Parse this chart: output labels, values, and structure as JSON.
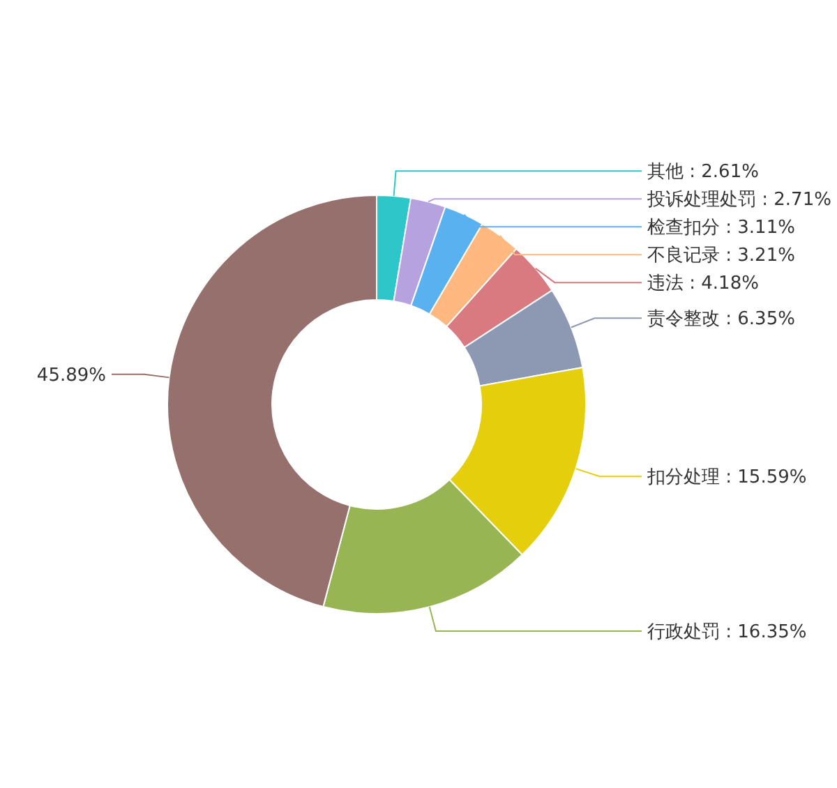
{
  "chart_data": {
    "type": "donut",
    "categories": [
      "其他",
      "投诉处理处罚",
      "检查扣分",
      "不良记录",
      "违法",
      "责令整改",
      "扣分处理",
      "行政处罚",
      null
    ],
    "values": [
      2.61,
      2.71,
      3.11,
      3.21,
      4.18,
      6.35,
      15.59,
      16.35,
      45.89
    ],
    "colors": [
      "#2ec7c9",
      "#b6a2de",
      "#5ab1ef",
      "#ffb980",
      "#d87a80",
      "#8d98b3",
      "#e5cf0d",
      "#97b552",
      "#95706d"
    ],
    "value_labels": [
      ": 2.61%",
      ": 2.71%",
      ": 3.11%",
      ": 3.21%",
      ": 4.18%",
      ": 6.35%",
      ": 15.59%",
      ": 16.35%",
      "45.89%"
    ]
  }
}
